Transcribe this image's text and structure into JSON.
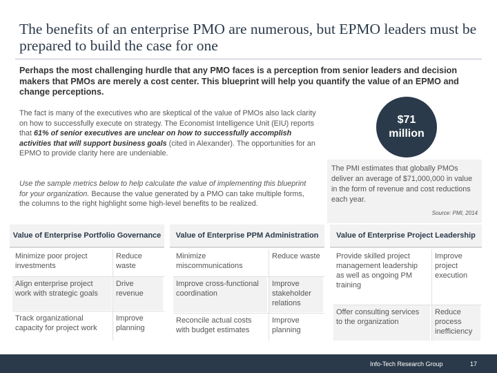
{
  "title": "The benefits of an enterprise PMO are numerous, but EPMO leaders must be prepared to build the case for one",
  "lead": "Perhaps the most challenging hurdle that any PMO faces is a perception from senior leaders and decision makers that PMOs are merely a cost center. This blueprint will help you quantify the value of an EPMO and change perceptions.",
  "body1": {
    "p1": "The fact is many of the executives who are skeptical of the value of PMOs also lack clarity on how to successfully execute on strategy. The Economist Intelligence Unit (EIU) reports that ",
    "emph": "61% of senior executives are unclear on how to successfully accomplish activities that will support business goals",
    "p2": " (cited in Alexander). The opportunities for an EPMO to provide clarity here are undeniable."
  },
  "body2": {
    "emph": "Use the sample metrics below to help calculate the value of implementing this blueprint for your organization.",
    "rest": " Because the value generated by a PMO can take multiple forms, the columns to the right highlight some high-level benefits to be realized."
  },
  "stat": {
    "amount": "$71",
    "unit": "million"
  },
  "pmi_text": "The PMI estimates that globally PMOs deliver an average of $71,000,000 in value in the form of revenue and cost reductions each year.",
  "source": "Source: PMI, 2014",
  "columns": [
    {
      "header": "Value of Enterprise Portfolio Governance",
      "rows": [
        {
          "action": "Minimize poor project investments",
          "benefit": "Reduce waste"
        },
        {
          "action": "Align enterprise project work with strategic goals",
          "benefit": "Drive revenue"
        },
        {
          "action": "Track organizational capacity for project work",
          "benefit": "Improve planning"
        }
      ]
    },
    {
      "header": "Value of Enterprise PPM Administration",
      "rows": [
        {
          "action": "Minimize miscommunications",
          "benefit": "Reduce waste"
        },
        {
          "action": "Improve cross-functional coordination",
          "benefit": "Improve stakeholder relations"
        },
        {
          "action": "Reconcile actual costs with budget estimates",
          "benefit": "Improve planning"
        }
      ]
    },
    {
      "header": "Value of Enterprise Project Leadership",
      "rows": [
        {
          "action": "Provide skilled project management leadership as well as ongoing PM training",
          "benefit": "Improve project execution"
        },
        {
          "action": "Offer consulting services to the organization",
          "benefit": "Reduce process inefficiency"
        }
      ]
    }
  ],
  "footer": {
    "company": "Info-Tech Research Group",
    "page": "17"
  }
}
